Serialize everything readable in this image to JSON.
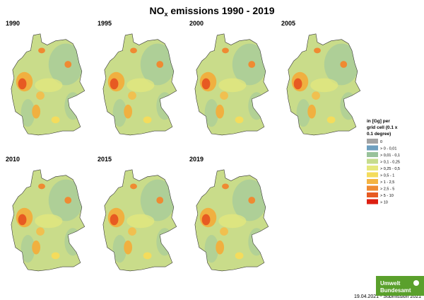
{
  "title": {
    "main": "NO",
    "subscript": "x",
    "rest": " emissions 1990 - 2019"
  },
  "panels": [
    "1990",
    "1995",
    "2000",
    "2005",
    "2010",
    "2015",
    "2019"
  ],
  "legend": {
    "title_lines": [
      "in [Gg] per",
      "grid cell (0.1 x",
      "0.1 degree)"
    ],
    "items": [
      {
        "label": "0",
        "color": "#a3a3a3"
      },
      {
        "label": "> 0     - 0,01",
        "color": "#6e9fbf"
      },
      {
        "label": "> 0,01 - 0,1",
        "color": "#98c29a"
      },
      {
        "label": "> 0,1   - 0,25",
        "color": "#c6dc8d"
      },
      {
        "label": "> 0,25 - 0,5",
        "color": "#e6e87c"
      },
      {
        "label": "> 0,5   - 1",
        "color": "#f4dc5c"
      },
      {
        "label": "> 1      - 2,5",
        "color": "#f4b442"
      },
      {
        "label": "> 2,5   - 5",
        "color": "#ef8a32"
      },
      {
        "label": "> 5      - 10",
        "color": "#e75a22"
      },
      {
        "label": "> 10",
        "color": "#dd1f12"
      }
    ]
  },
  "footer": "19.04.2021 - Submission 2021",
  "logo": [
    "Umwelt",
    "Bundesamt"
  ]
}
